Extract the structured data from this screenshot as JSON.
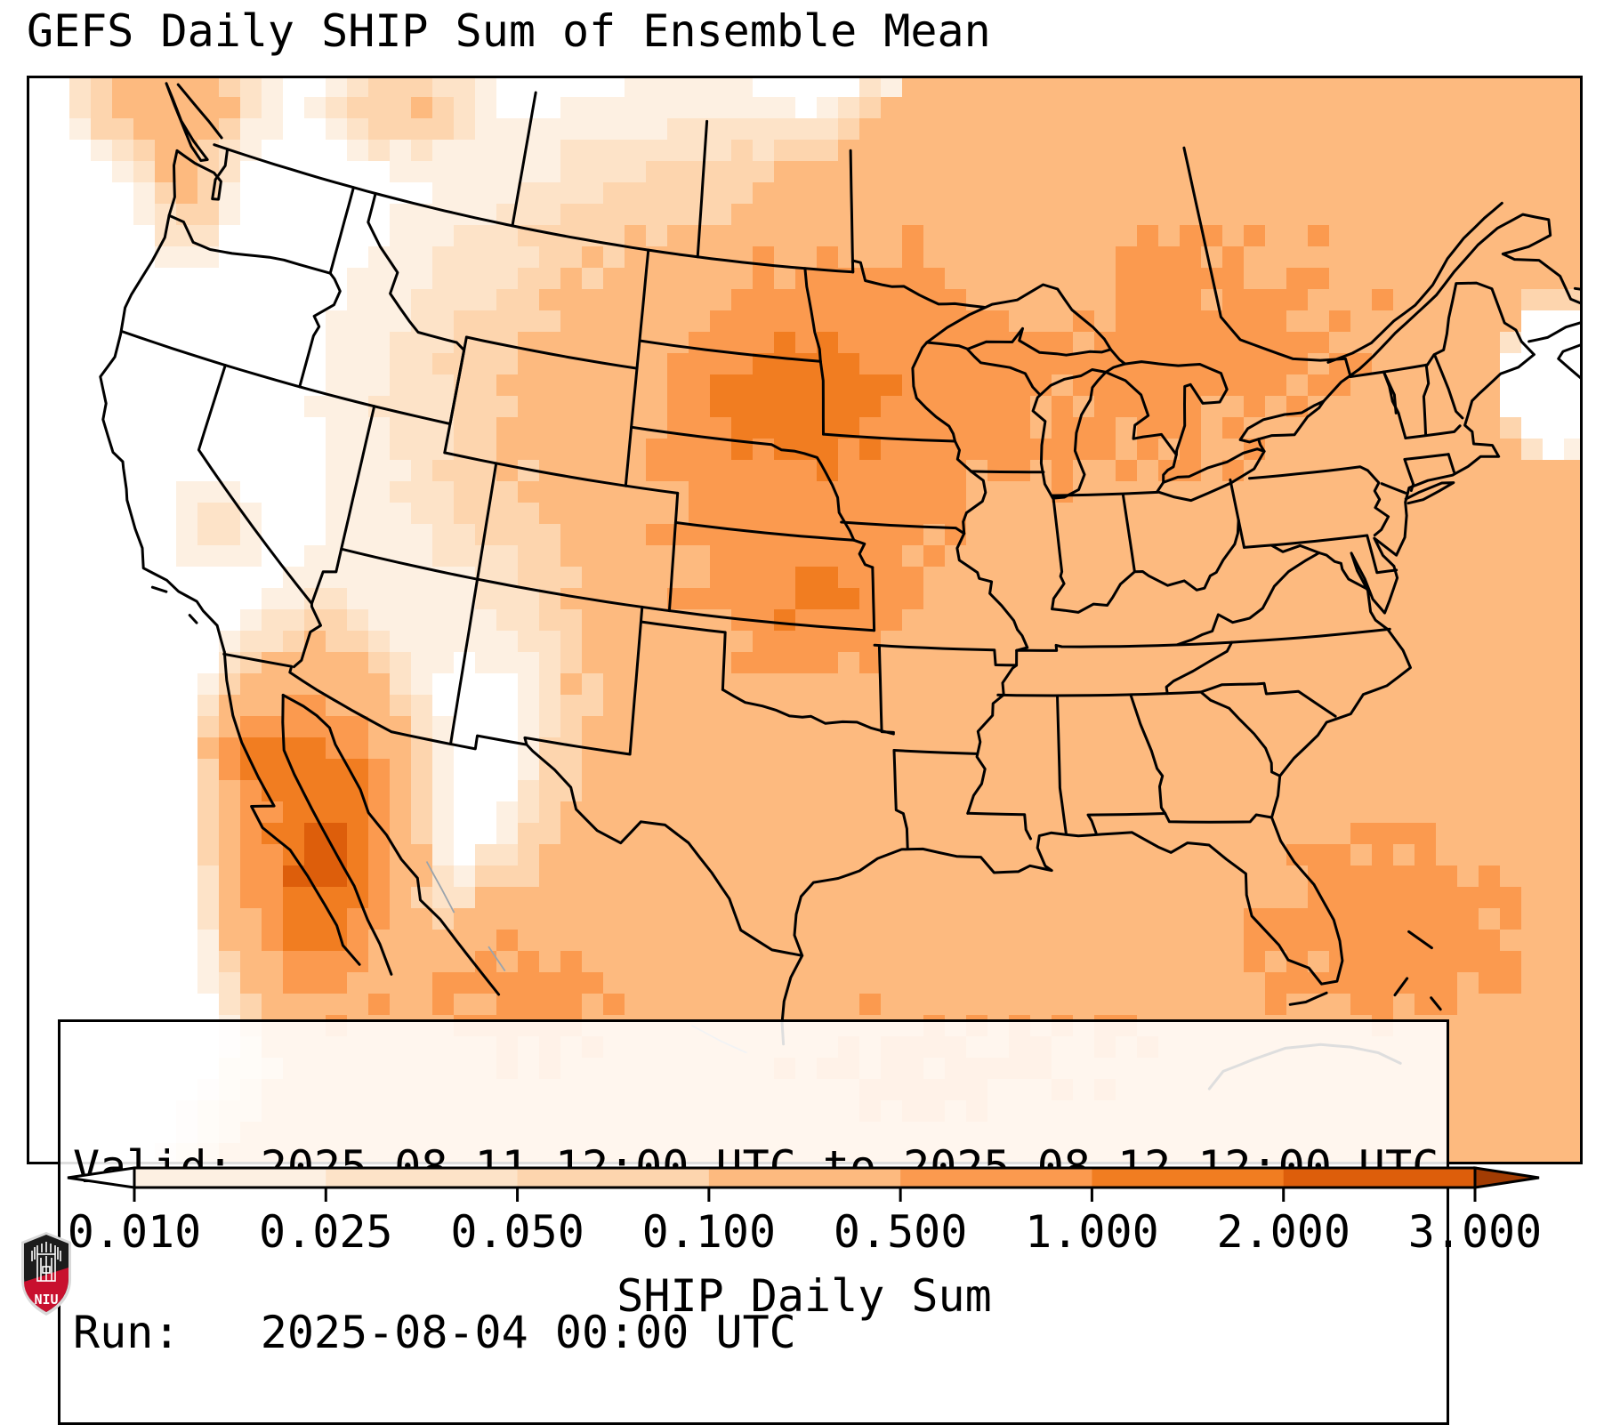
{
  "title": "GEFS Daily SHIP Sum of Ensemble Mean",
  "info_box": {
    "valid_line": "Valid: 2025-08-11 12:00 UTC to 2025-08-12 12:00 UTC",
    "run_line": "Run:   2025-08-04 00:00 UTC"
  },
  "colorbar": {
    "label": "SHIP Daily Sum",
    "tick_labels": [
      "0.010",
      "0.025",
      "0.050",
      "0.100",
      "0.500",
      "1.000",
      "2.000",
      "3.000"
    ],
    "boundaries": [
      0.01,
      0.025,
      0.05,
      0.1,
      0.5,
      1.0,
      2.0,
      3.0
    ],
    "extend": "both",
    "under_color": "#ffffff",
    "bin_colors": [
      "#fdf0e2",
      "#fde3c8",
      "#fdd5ae",
      "#fdba7f",
      "#fb9a4f",
      "#f17d21",
      "#dd5e0b"
    ],
    "over_color": "#a23c03",
    "outline_color": "#000000"
  },
  "map": {
    "line_color": "#000000",
    "thin_line_color": "#9aa4ad",
    "background": "#ffffff",
    "description": "Filled SHIP ensemble-mean daily sum over CONUS: white over the Interior West, light-to-moderate orange over the central and eastern US, maxima over Iowa/Kansas and the Sierra Madre of NW Mexico, secondary maxima off the Southeast coast and Gulf."
  },
  "logo": {
    "text": "NIU",
    "shield_color": "#1c1c1c",
    "band_color": "#c8102e",
    "detail_color": "#ffffff"
  }
}
